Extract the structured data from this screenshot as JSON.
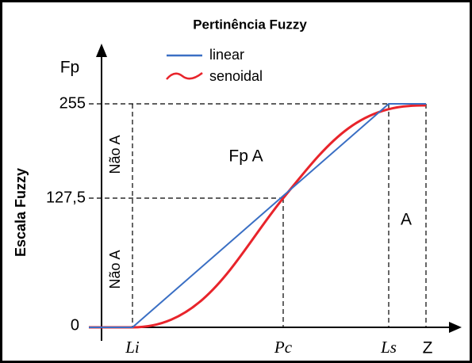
{
  "title": "Pertinência Fuzzy",
  "legend": [
    "linear",
    "senoidal"
  ],
  "y_axis": {
    "label": "Fp",
    "side_label": "Escala Fuzzy",
    "ticks": [
      "0",
      "127,5",
      "255"
    ]
  },
  "x_axis": {
    "ticks": [
      "Li",
      "Pc",
      "Ls"
    ],
    "end_label": "Z"
  },
  "annotations": [
    "Não A",
    "Não A",
    "Fp A",
    "A"
  ]
}
